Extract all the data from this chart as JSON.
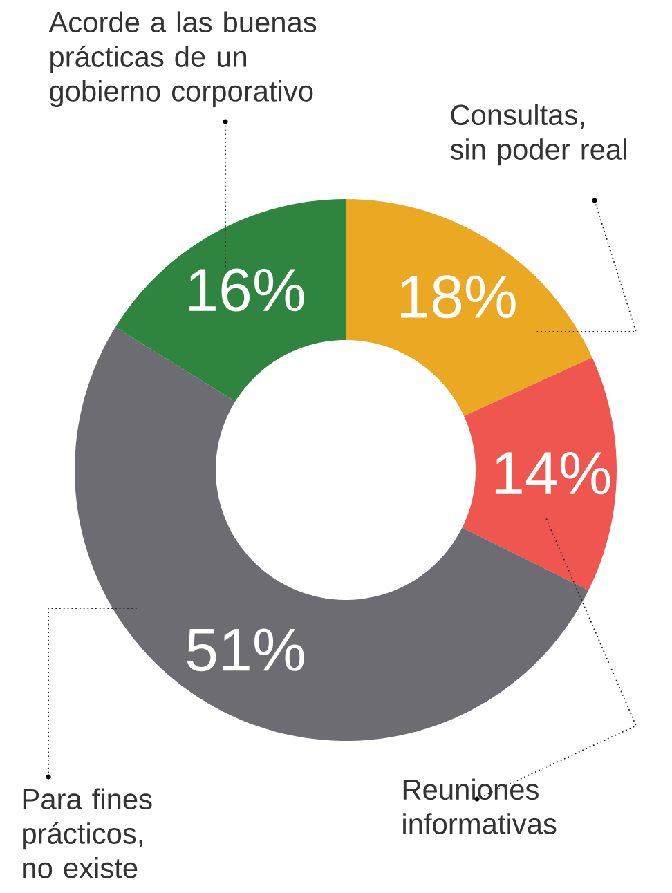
{
  "chart_data": {
    "type": "donut",
    "categories": [
      "Consultas,\nsin poder real",
      "Reuniones\ninformativas",
      "Para fines\nprácticos,\nno existe",
      "Acorde a las buenas\nprácticas de un\ngobierno corporativo"
    ],
    "values": [
      18,
      14,
      51,
      16
    ],
    "colors": [
      "#eba823",
      "#ef5650",
      "#6c6c72",
      "#2f8540"
    ],
    "value_labels": [
      "18%",
      "14%",
      "51%",
      "16%"
    ]
  }
}
